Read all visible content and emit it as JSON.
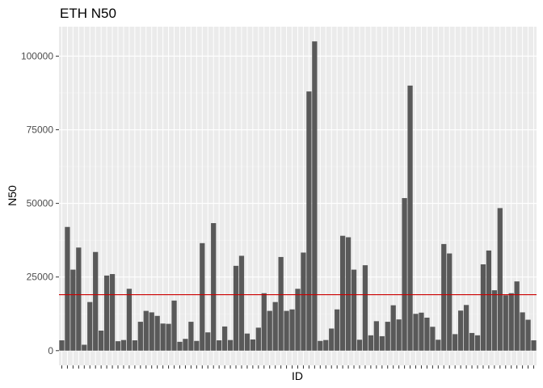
{
  "chart_data": {
    "type": "bar",
    "title": "ETH N50",
    "xlabel": "ID",
    "ylabel": "N50",
    "ylim": [
      -5000,
      110000
    ],
    "yticks": [
      0,
      25000,
      50000,
      75000,
      100000
    ],
    "ytick_labels": [
      "0",
      "25000",
      "50000",
      "75000",
      "100000"
    ],
    "grid": true,
    "legend": "none",
    "bar_color": "#595959",
    "panel_color": "#EBEBEB",
    "reference_line": {
      "value": 19000,
      "color": "#CC0000"
    },
    "values": [
      3500,
      42000,
      27500,
      35000,
      2000,
      16500,
      33500,
      6800,
      25500,
      26000,
      3200,
      3600,
      21000,
      3500,
      9800,
      13500,
      13000,
      11800,
      9200,
      9100,
      17000,
      3000,
      4000,
      9800,
      3300,
      36500,
      6200,
      43300,
      3500,
      8200,
      3600,
      28800,
      32200,
      5800,
      3800,
      7800,
      19500,
      13500,
      16500,
      31800,
      13500,
      14000,
      21000,
      33300,
      88000,
      105000,
      3300,
      3600,
      7500,
      14000,
      39000,
      38500,
      27500,
      3700,
      29000,
      5200,
      10000,
      4900,
      9800,
      15400,
      10600,
      51800,
      90000,
      12500,
      12900,
      11200,
      8100,
      3700,
      36200,
      33000,
      5600,
      13600,
      15500,
      6000,
      5200,
      29300,
      34000,
      20500,
      48400,
      18800,
      19500,
      23500,
      13000,
      10500,
      3500
    ]
  }
}
